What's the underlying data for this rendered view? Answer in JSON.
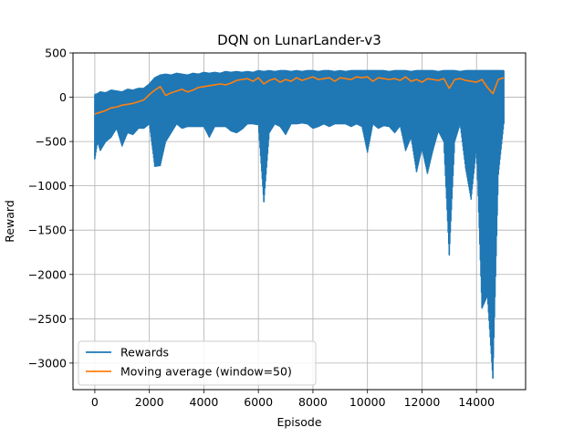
{
  "chart_data": {
    "type": "line",
    "title": "DQN on LunarLander-v3",
    "xlabel": "Episode",
    "ylabel": "Reward",
    "xlim": [
      -800,
      15800
    ],
    "ylim": [
      -3300,
      500
    ],
    "x_ticks": [
      0,
      2000,
      4000,
      6000,
      8000,
      10000,
      12000,
      14000
    ],
    "x_tick_labels": [
      "0",
      "2000",
      "4000",
      "6000",
      "8000",
      "10000",
      "12000",
      "14000"
    ],
    "y_ticks": [
      500,
      0,
      -500,
      -1000,
      -1500,
      -2000,
      -2500,
      -3000
    ],
    "y_tick_labels": [
      "500",
      "0",
      "−500",
      "−1000",
      "−1500",
      "−2000",
      "−2500",
      "−3000"
    ],
    "grid": true,
    "legend_position": "lower-left",
    "series": [
      {
        "name": "Rewards",
        "color": "#1f77b4",
        "x": [
          0,
          100,
          200,
          400,
          600,
          800,
          1000,
          1200,
          1400,
          1600,
          1800,
          2000,
          2200,
          2400,
          2600,
          2800,
          3000,
          3200,
          3400,
          3600,
          3800,
          4000,
          4200,
          4400,
          4600,
          4800,
          5000,
          5200,
          5400,
          5600,
          5800,
          6000,
          6200,
          6400,
          6600,
          6800,
          7000,
          7200,
          7400,
          7600,
          7800,
          8000,
          8200,
          8400,
          8600,
          8800,
          9000,
          9200,
          9400,
          9600,
          9800,
          10000,
          10200,
          10400,
          10600,
          10800,
          11000,
          11200,
          11400,
          11600,
          11800,
          12000,
          12200,
          12400,
          12600,
          12800,
          13000,
          13200,
          13400,
          13600,
          13800,
          14000,
          14200,
          14400,
          14600,
          14800,
          15000
        ],
        "upper": [
          30,
          40,
          60,
          50,
          80,
          70,
          60,
          90,
          80,
          100,
          100,
          150,
          220,
          250,
          260,
          250,
          270,
          260,
          250,
          270,
          260,
          280,
          270,
          280,
          270,
          290,
          280,
          290,
          280,
          290,
          280,
          300,
          290,
          300,
          290,
          300,
          300,
          290,
          300,
          290,
          300,
          300,
          290,
          300,
          300,
          290,
          300,
          290,
          300,
          300,
          300,
          300,
          300,
          300,
          300,
          290,
          300,
          300,
          300,
          290,
          300,
          300,
          300,
          300,
          290,
          300,
          300,
          300,
          290,
          300,
          300,
          300,
          300,
          300,
          300,
          300,
          300
        ],
        "lower": [
          -700,
          -500,
          -600,
          -500,
          -450,
          -350,
          -550,
          -400,
          -420,
          -350,
          -350,
          -300,
          -780,
          -770,
          -500,
          -400,
          -300,
          -350,
          -330,
          -330,
          -330,
          -330,
          -450,
          -330,
          -330,
          -330,
          -380,
          -400,
          -360,
          -300,
          -300,
          -310,
          -1180,
          -400,
          -300,
          -330,
          -420,
          -300,
          -300,
          -290,
          -300,
          -350,
          -330,
          -300,
          -330,
          -300,
          -300,
          -300,
          -330,
          -300,
          -330,
          -620,
          -300,
          -350,
          -320,
          -330,
          -400,
          -320,
          -600,
          -450,
          -840,
          -580,
          -860,
          -600,
          -380,
          -500,
          -1780,
          -500,
          -300,
          -800,
          -1150,
          -570,
          -2380,
          -2240,
          -3170,
          -870,
          -300
        ]
      },
      {
        "name": "Moving average (window=50)",
        "color": "#ff7f0e",
        "x": [
          0,
          200,
          400,
          600,
          800,
          1000,
          1200,
          1400,
          1600,
          1800,
          2000,
          2200,
          2400,
          2600,
          2800,
          3000,
          3200,
          3400,
          3600,
          3800,
          4000,
          4200,
          4400,
          4600,
          4800,
          5000,
          5200,
          5400,
          5600,
          5800,
          6000,
          6200,
          6400,
          6600,
          6800,
          7000,
          7200,
          7400,
          7600,
          7800,
          8000,
          8200,
          8400,
          8600,
          8800,
          9000,
          9200,
          9400,
          9600,
          9800,
          10000,
          10200,
          10400,
          10600,
          10800,
          11000,
          11200,
          11400,
          11600,
          11800,
          12000,
          12200,
          12400,
          12600,
          12800,
          13000,
          13200,
          13400,
          13600,
          13800,
          14000,
          14200,
          14400,
          14600,
          14800,
          15000
        ],
        "y": [
          -190,
          -170,
          -150,
          -120,
          -110,
          -90,
          -80,
          -70,
          -50,
          -30,
          30,
          80,
          120,
          20,
          50,
          70,
          90,
          60,
          80,
          110,
          120,
          130,
          140,
          150,
          140,
          160,
          190,
          200,
          210,
          180,
          220,
          150,
          190,
          210,
          170,
          200,
          180,
          220,
          190,
          210,
          230,
          200,
          210,
          220,
          180,
          220,
          210,
          200,
          230,
          220,
          230,
          180,
          220,
          210,
          200,
          210,
          190,
          230,
          180,
          200,
          170,
          210,
          200,
          190,
          210,
          100,
          200,
          210,
          190,
          180,
          170,
          200,
          110,
          40,
          200,
          220
        ]
      }
    ]
  }
}
